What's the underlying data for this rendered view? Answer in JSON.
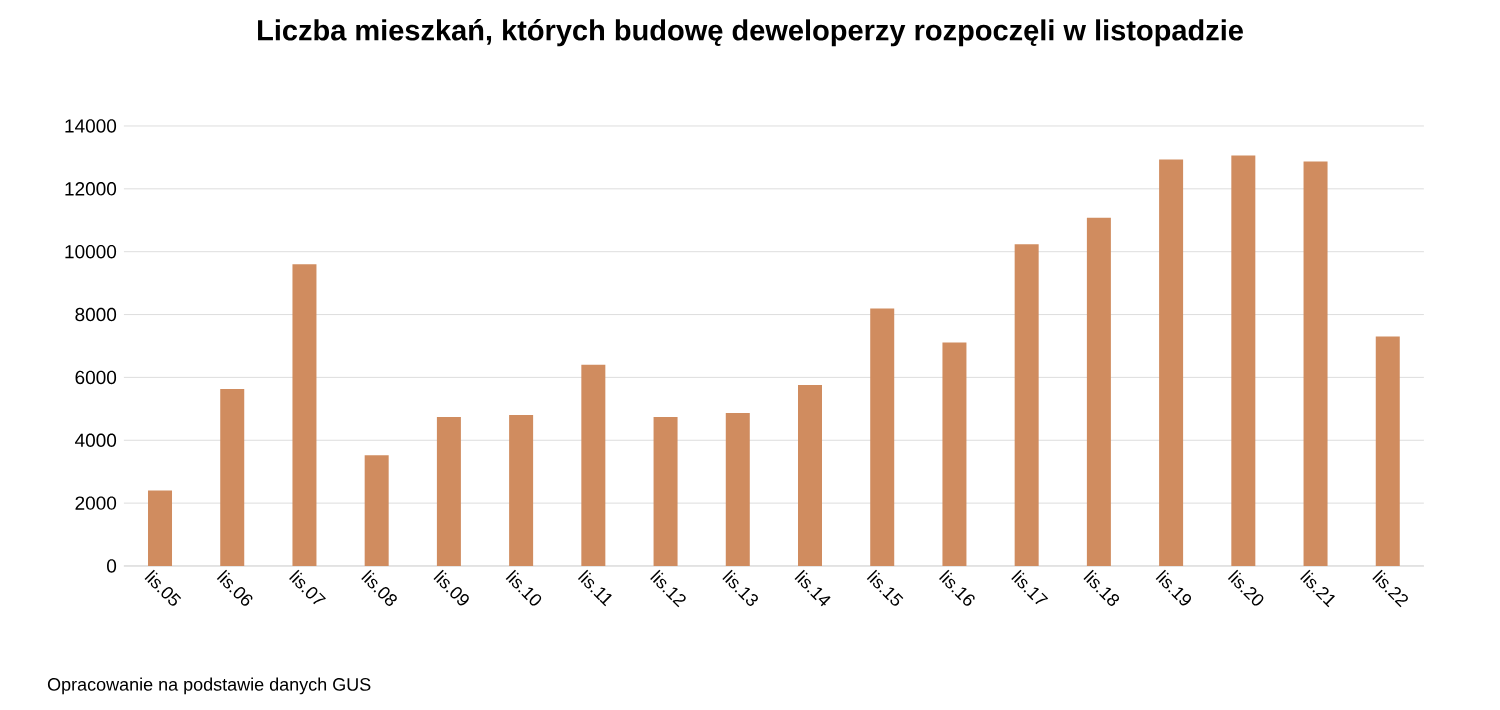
{
  "chart_data": {
    "type": "bar",
    "title": "Liczba mieszkań, których budowę deweloperzy rozpoczęli w listopadzie",
    "categories": [
      "lis.05",
      "lis.06",
      "lis.07",
      "lis.08",
      "lis.09",
      "lis.10",
      "lis.11",
      "lis.12",
      "lis.13",
      "lis.14",
      "lis.15",
      "lis.16",
      "lis.17",
      "lis.18",
      "lis.19",
      "lis.20",
      "lis.21",
      "lis.22"
    ],
    "values": [
      2400,
      5630,
      9600,
      3520,
      4740,
      4800,
      6400,
      4740,
      4870,
      5760,
      8190,
      7110,
      10240,
      11080,
      12930,
      13060,
      12870,
      7300
    ],
    "color": "#d08c5f",
    "ylim": [
      0,
      14000
    ],
    "yticks": [
      0,
      2000,
      4000,
      6000,
      8000,
      10000,
      12000,
      14000
    ],
    "grid": "y",
    "annotations": [
      "Opracowanie na podstawie danych GUS"
    ]
  }
}
